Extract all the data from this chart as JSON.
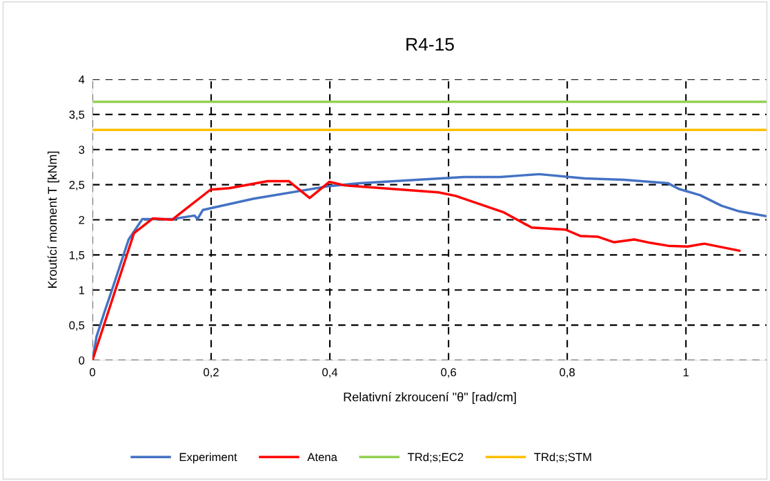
{
  "chart_data": {
    "type": "line",
    "title": "R4-15",
    "xlabel": "Relativní zkroucení \"θ\" [rad/cm]",
    "ylabel": "Kroutící moment T [kNm]",
    "xlim": [
      0,
      1.137
    ],
    "ylim": [
      0,
      4
    ],
    "xticks": [
      {
        "value": 0,
        "label": "0"
      },
      {
        "value": 0.2,
        "label": "0,2"
      },
      {
        "value": 0.4,
        "label": "0,4"
      },
      {
        "value": 0.6,
        "label": "0,6"
      },
      {
        "value": 0.8,
        "label": "0,8"
      },
      {
        "value": 1,
        "label": "1"
      }
    ],
    "yticks": [
      {
        "value": 0,
        "label": "0"
      },
      {
        "value": 0.5,
        "label": "0,5"
      },
      {
        "value": 1,
        "label": "1"
      },
      {
        "value": 1.5,
        "label": "1,5"
      },
      {
        "value": 2,
        "label": "2"
      },
      {
        "value": 2.5,
        "label": "2,5"
      },
      {
        "value": 3,
        "label": "3"
      },
      {
        "value": 3.5,
        "label": "3,5"
      },
      {
        "value": 4,
        "label": "4"
      }
    ],
    "grid": true,
    "legend": "bottom",
    "line_style": "solid",
    "marker": "none",
    "series": [
      {
        "name": "Experiment",
        "color": "#4472c4",
        "x": [
          0,
          0.007,
          0.02,
          0.034,
          0.061,
          0.084,
          0.135,
          0.172,
          0.177,
          0.186,
          0.271,
          0.399,
          0.45,
          0.626,
          0.687,
          0.753,
          0.829,
          0.895,
          0.97,
          0.988,
          1.024,
          1.06,
          1.09,
          1.137
        ],
        "values": [
          0,
          0.34,
          0.68,
          1.03,
          1.72,
          2.01,
          2.01,
          2.06,
          2.01,
          2.14,
          2.3,
          2.48,
          2.52,
          2.61,
          2.61,
          2.65,
          2.59,
          2.57,
          2.52,
          2.44,
          2.35,
          2.2,
          2.12,
          2.05
        ]
      },
      {
        "name": "Atena",
        "color": "#ff0000",
        "x": [
          0,
          0.07,
          0.102,
          0.134,
          0.199,
          0.23,
          0.295,
          0.331,
          0.366,
          0.399,
          0.425,
          0.583,
          0.612,
          0.692,
          0.74,
          0.797,
          0.822,
          0.851,
          0.879,
          0.913,
          0.941,
          0.97,
          1.003,
          1.031,
          1.09
        ],
        "values": [
          0,
          1.81,
          2.02,
          2.0,
          2.43,
          2.45,
          2.55,
          2.55,
          2.31,
          2.54,
          2.49,
          2.39,
          2.34,
          2.11,
          1.89,
          1.86,
          1.77,
          1.76,
          1.68,
          1.72,
          1.67,
          1.63,
          1.62,
          1.66,
          1.56
        ]
      }
    ],
    "ref_lines": [
      {
        "axis": "y",
        "value": 3.68,
        "label": "TRd;s;EC2",
        "color": "#92d050",
        "line_style": "solid"
      },
      {
        "axis": "y",
        "value": 3.28,
        "label": "TRd;s;STM",
        "color": "#ffc000",
        "line_style": "solid"
      }
    ]
  }
}
